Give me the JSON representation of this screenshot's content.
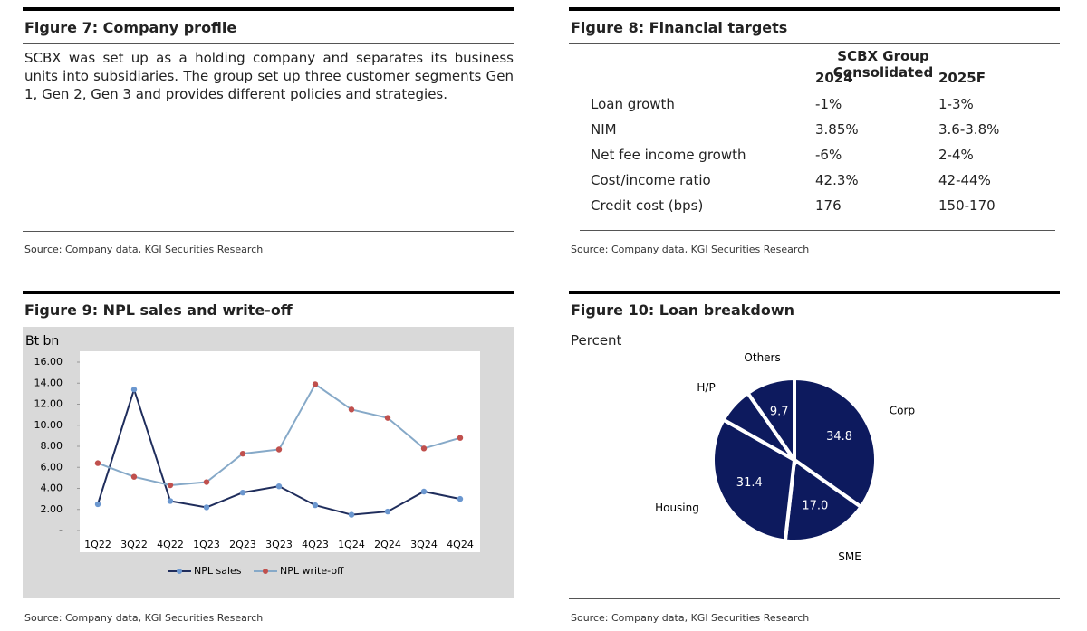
{
  "figure7": {
    "title": "Figure 7: Company profile",
    "text": "SCBX was set up as a holding company and separates its business units into subsidiaries. The group set up three customer segments Gen 1, Gen 2, Gen 3 and provides different policies and strategies.",
    "source": "Source: Company data, KGI Securities Research"
  },
  "figure8": {
    "title": "Figure 8: Financial targets",
    "group_header": "SCBX Group Consolidated",
    "columns": [
      "2024",
      "2025F"
    ],
    "rows": [
      [
        "Loan growth",
        "-1%",
        "1-3%"
      ],
      [
        "NIM",
        "3.85%",
        "3.6-3.8%"
      ],
      [
        "Net fee income growth",
        "-6%",
        "2-4%"
      ],
      [
        "Cost/income ratio",
        "42.3%",
        "42-44%"
      ],
      [
        "Credit cost (bps)",
        "176",
        "150-170"
      ]
    ],
    "source": "Source: Company data, KGI Securities Research"
  },
  "chart_data": [
    {
      "type": "line",
      "title": "Figure 9: NPL sales and write-off",
      "y_label": "Bt bn",
      "categories": [
        "1Q22",
        "3Q22",
        "4Q22",
        "1Q23",
        "2Q23",
        "3Q23",
        "4Q23",
        "1Q24",
        "2Q24",
        "3Q24",
        "4Q24"
      ],
      "series": [
        {
          "name": "NPL sales",
          "color": "#1f2d5c",
          "marker_color": "#6b97cf",
          "values": [
            2.5,
            13.4,
            2.8,
            2.2,
            3.6,
            4.2,
            2.4,
            1.5,
            1.8,
            3.7,
            3.0
          ]
        },
        {
          "name": "NPL write-off",
          "color": "#86a9c8",
          "marker_color": "#c0504d",
          "values": [
            6.4,
            5.1,
            4.3,
            4.6,
            7.3,
            7.7,
            13.9,
            11.5,
            10.7,
            7.8,
            8.8
          ]
        }
      ],
      "ylim": [
        0,
        16
      ],
      "yticks": [
        {
          "value": 0,
          "label": "-"
        },
        {
          "value": 2,
          "label": "2.00"
        },
        {
          "value": 4,
          "label": "4.00"
        },
        {
          "value": 6,
          "label": "6.00"
        },
        {
          "value": 8,
          "label": "8.00"
        },
        {
          "value": 10,
          "label": "10.00"
        },
        {
          "value": 12,
          "label": "12.00"
        },
        {
          "value": 14,
          "label": "14.00"
        },
        {
          "value": 16,
          "label": "16.00"
        }
      ],
      "legend": "bottom",
      "source": "Source: Company data, KGI Securities Research"
    },
    {
      "type": "pie",
      "title": "Figure 10: Loan breakdown",
      "subtitle": "Percent",
      "categories": [
        "Corp",
        "SME",
        "Housing",
        "H/P",
        "Others"
      ],
      "values": [
        34.8,
        17.0,
        31.4,
        7.1,
        9.7
      ],
      "value_labels": [
        "34.8",
        "17.0",
        "31.4",
        null,
        "9.7"
      ],
      "color": "#0d1a5e",
      "source": "Source: Company data, KGI Securities Research"
    }
  ]
}
